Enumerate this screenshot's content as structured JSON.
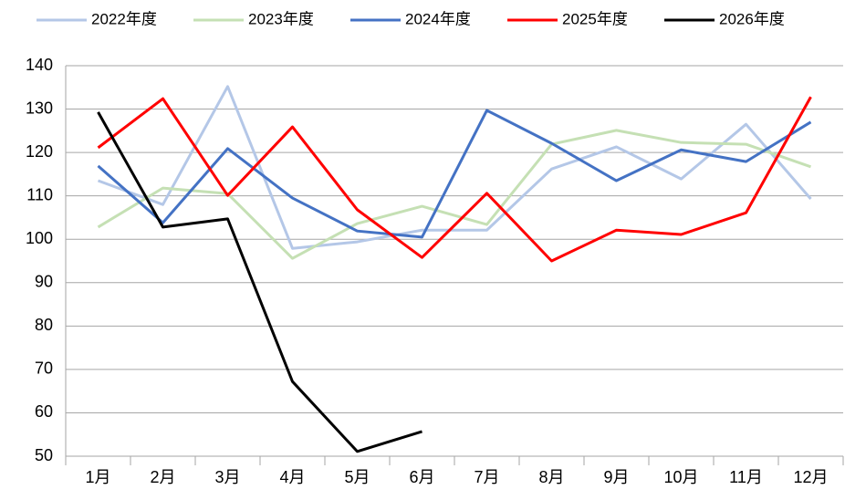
{
  "chart_data": {
    "type": "line",
    "categories": [
      "1月",
      "2月",
      "3月",
      "4月",
      "5月",
      "6月",
      "7月",
      "8月",
      "9月",
      "10月",
      "11月",
      "12月"
    ],
    "series": [
      {
        "name": "2022年度",
        "color": "#b4c7e7",
        "values": [
          113.5,
          108,
          135.2,
          97.9,
          99.4,
          102.1,
          102.1,
          116.2,
          121.3,
          113.9,
          126.5,
          109.3
        ]
      },
      {
        "name": "2023年度",
        "color": "#c5e0b4",
        "values": [
          102.8,
          111.8,
          110.5,
          95.6,
          103.6,
          107.6,
          103.4,
          121.9,
          125.1,
          122.3,
          121.9,
          116.7
        ]
      },
      {
        "name": "2024年度",
        "color": "#4472c4",
        "values": [
          116.9,
          103.8,
          120.9,
          109.5,
          101.9,
          100.5,
          129.7,
          122.1,
          113.5,
          120.6,
          117.9,
          127
        ]
      },
      {
        "name": "2025年度",
        "color": "#ff0000",
        "values": [
          121.1,
          132.4,
          110.1,
          125.9,
          106.8,
          95.8,
          110.6,
          95,
          102.1,
          101.1,
          106.1,
          132.8
        ]
      },
      {
        "name": "2026年度",
        "color": "#000000",
        "values": [
          129.3,
          102.8,
          104.7,
          67.2,
          51.1,
          55.7,
          null,
          null,
          null,
          null,
          null,
          null
        ]
      }
    ],
    "ylim": [
      50,
      140
    ],
    "yticks": [
      50,
      60,
      70,
      80,
      90,
      100,
      110,
      120,
      130,
      140
    ],
    "grid": true
  }
}
